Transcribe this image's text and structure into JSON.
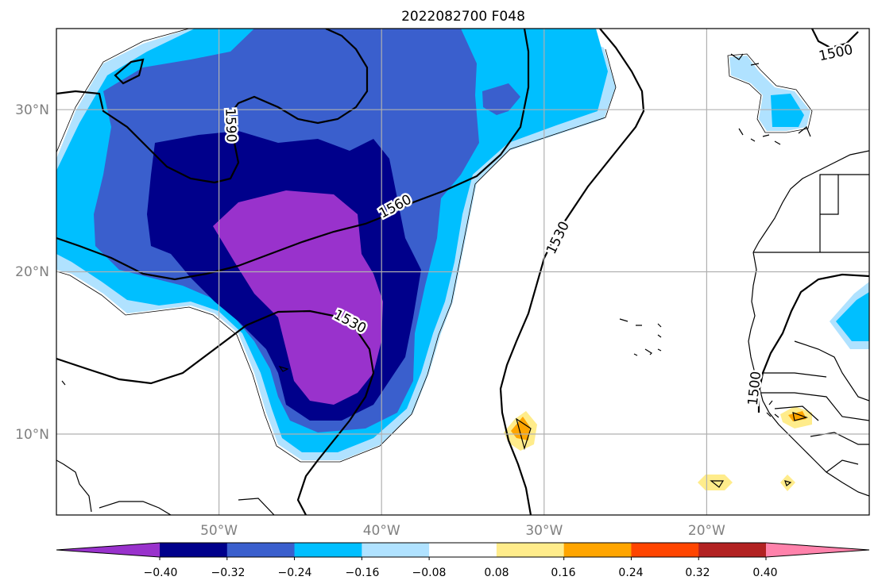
{
  "title": "2022082700 F048",
  "map": {
    "lon_range": [
      -60,
      -10
    ],
    "lat_range": [
      5,
      35
    ],
    "lon_ticks": [
      {
        "value": -50,
        "label": "50°W"
      },
      {
        "value": -40,
        "label": "40°W"
      },
      {
        "value": -30,
        "label": "30°W"
      },
      {
        "value": -20,
        "label": "20°W"
      }
    ],
    "lat_ticks": [
      {
        "value": 30,
        "label": "30°N"
      },
      {
        "value": 20,
        "label": "20°N"
      },
      {
        "value": 10,
        "label": "10°N"
      }
    ],
    "grid": true,
    "contour_labels": [
      "1590",
      "1560",
      "1530",
      "1530",
      "1500",
      "1500"
    ]
  },
  "colorbar": {
    "ticks": [
      "−0.40",
      "−0.32",
      "−0.24",
      "−0.16",
      "−0.08",
      "0.08",
      "0.16",
      "0.24",
      "0.32",
      "0.40"
    ],
    "colors": [
      "#9932cc",
      "#00008b",
      "#3a5fcd",
      "#00bfff",
      "#b0e2ff",
      "#ffffff",
      "#ffec8b",
      "#ffa500",
      "#ff4500",
      "#b22222",
      "#ff82ab"
    ],
    "extend": "both"
  },
  "colors": {
    "frame": "#000000",
    "grid": "#b0b0b0",
    "tick_label": "#808080"
  }
}
